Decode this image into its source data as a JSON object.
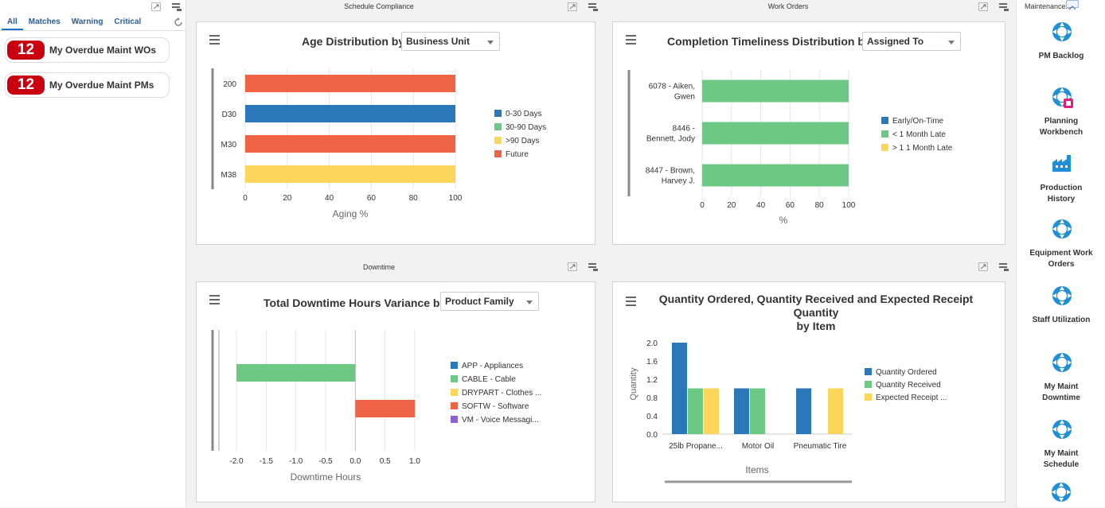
{
  "watchlist": {
    "tabs": [
      "All",
      "Matches",
      "Warning",
      "Critical"
    ],
    "items": [
      {
        "count": "12",
        "label": "My Overdue Maint WOs"
      },
      {
        "count": "12",
        "label": "My Overdue Maint PMs"
      }
    ]
  },
  "panels": {
    "schedule_compliance": {
      "title": "Schedule Compliance",
      "chart_title": "Age Distribution by",
      "dropdown": "Business Unit"
    },
    "work_orders": {
      "title": "Work Orders",
      "chart_title": "Completion Timeliness Distribution by",
      "dropdown": "Assigned To"
    },
    "downtime": {
      "title": "Downtime",
      "chart_title": "Total Downtime Hours Variance by",
      "dropdown": "Product Family"
    },
    "quantity": {
      "title": "",
      "chart_title_line1": "Quantity Ordered, Quantity Received and Expected Receipt Quantity",
      "chart_title_line2": "by Item"
    }
  },
  "springboard": {
    "title": "Maintenance...",
    "items": [
      {
        "label1": "PM Backlog",
        "label2": ""
      },
      {
        "label1": "Planning",
        "label2": "Workbench"
      },
      {
        "label1": "Production",
        "label2": "History"
      },
      {
        "label1": "Equipment Work",
        "label2": "Orders"
      },
      {
        "label1": "Staff Utilization",
        "label2": ""
      },
      {
        "label1": "My Maint",
        "label2": "Downtime"
      },
      {
        "label1": "My Maint",
        "label2": "Schedule"
      }
    ]
  },
  "colors": {
    "blue": "#2a77b9",
    "green": "#6cc882",
    "yellow": "#fcd65b",
    "orange": "#ef6444",
    "purple": "#8e61d3"
  },
  "chart_data": [
    {
      "type": "bar",
      "orientation": "horizontal",
      "title": "Age Distribution by Business Unit",
      "categories": [
        "200",
        "D30",
        "M30",
        "M38"
      ],
      "values": [
        100,
        100,
        100,
        100
      ],
      "bar_series": [
        "Future",
        "0-30 Days",
        "Future",
        ">90 Days"
      ],
      "legend": [
        {
          "name": "0-30 Days",
          "color": "#2a77b9"
        },
        {
          "name": "30-90 Days",
          "color": "#6cc882"
        },
        {
          "name": ">90 Days",
          "color": "#fcd65b"
        },
        {
          "name": "Future",
          "color": "#ef6444"
        }
      ],
      "xticks": [
        0,
        20,
        40,
        60,
        80,
        100
      ],
      "xlim": [
        0,
        100
      ],
      "xlabel": "Aging %"
    },
    {
      "type": "bar",
      "orientation": "horizontal",
      "title": "Completion Timeliness Distribution by Assigned To",
      "categories": [
        [
          "6078 - Aiken,",
          "Gwen"
        ],
        [
          "8446 -",
          "Bennett, Jody"
        ],
        [
          "8447 - Brown,",
          "Harvey J."
        ]
      ],
      "values": [
        100,
        100,
        100
      ],
      "bar_series": [
        "< 1 Month Late",
        "< 1 Month Late",
        "< 1 Month Late"
      ],
      "legend": [
        {
          "name": "Early/On-Time",
          "color": "#2a77b9"
        },
        {
          "name": "< 1 Month Late",
          "color": "#6cc882"
        },
        {
          "name": "> 1 1 Month Late",
          "color": "#fcd65b"
        }
      ],
      "xticks": [
        0,
        20,
        40,
        60,
        80,
        100
      ],
      "xlim": [
        0,
        100
      ],
      "xlabel": "%"
    },
    {
      "type": "bar",
      "orientation": "horizontal",
      "title": "Total Downtime Hours Variance by Product Family",
      "categories": [
        "CABLE - Cable",
        "SOFTW - Software"
      ],
      "values": [
        -2.0,
        1.0
      ],
      "bar_series": [
        "CABLE - Cable",
        "SOFTW - Software"
      ],
      "legend": [
        {
          "name": "APP - Appliances",
          "color": "#2a77b9"
        },
        {
          "name": "CABLE - Cable",
          "color": "#6cc882"
        },
        {
          "name": "DRYPART - Clothes ...",
          "color": "#fcd65b"
        },
        {
          "name": "SOFTW - Software",
          "color": "#ef6444"
        },
        {
          "name": "VM - Voice Messagi...",
          "color": "#8e61d3"
        }
      ],
      "xticks": [
        "-2.0",
        "-1.5",
        "-1.0",
        "-0.5",
        "0.0",
        "0.5",
        "1.0"
      ],
      "xlim": [
        -2.0,
        1.0
      ],
      "xlabel": "Downtime Hours"
    },
    {
      "type": "bar",
      "orientation": "vertical",
      "title": "Quantity Ordered, Quantity Received and Expected Receipt Quantity by Item",
      "categories": [
        "25lb Propane...",
        "Motor Oil",
        "Pneumatic Tire"
      ],
      "series": [
        {
          "name": "Quantity Ordered",
          "color": "#2a77b9",
          "values": [
            2.0,
            1.0,
            1.0
          ]
        },
        {
          "name": "Quantity Received",
          "color": "#6cc882",
          "values": [
            1.0,
            1.0,
            0
          ]
        },
        {
          "name": "Expected Receipt ...",
          "color": "#fcd65b",
          "values": [
            1.0,
            0,
            1.0
          ]
        }
      ],
      "yticks": [
        "0.0",
        "0.4",
        "0.8",
        "1.2",
        "1.6",
        "2.0"
      ],
      "ylim": [
        0,
        2.0
      ],
      "xlabel": "Items",
      "ylabel": "Quantity"
    }
  ]
}
